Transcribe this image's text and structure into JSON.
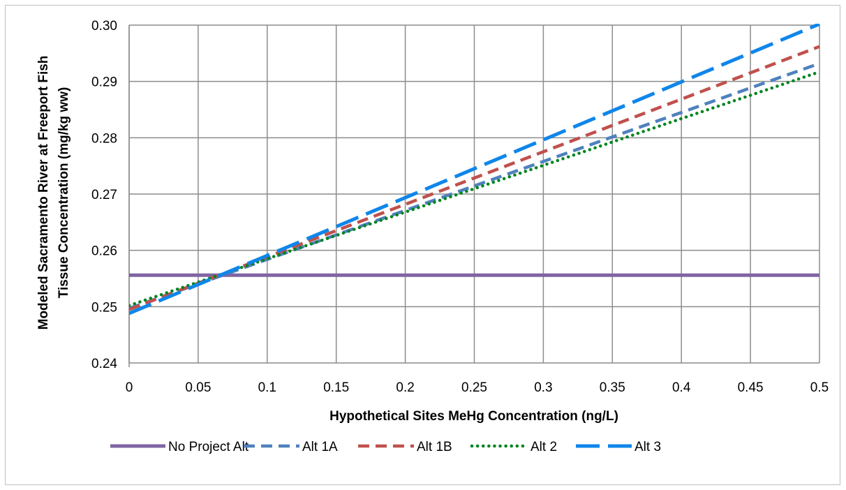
{
  "chart_data": {
    "type": "line",
    "title": "",
    "xlabel": "Hypothetical Sites MeHg Concentration (ng/L)",
    "ylabel": [
      "Modeled Sacramento River at Freeport Fish",
      "Tissue Concentration (mg/kg ww)"
    ],
    "xlim": [
      0,
      0.5
    ],
    "ylim": [
      0.24,
      0.3
    ],
    "x_ticks": [
      0,
      0.05,
      0.1,
      0.15,
      0.2,
      0.25,
      0.3,
      0.35,
      0.4,
      0.45,
      0.5
    ],
    "x_tick_labels": [
      "0",
      "0.05",
      "0.1",
      "0.15",
      "0.2",
      "0.25",
      "0.3",
      "0.35",
      "0.4",
      "0.45",
      "0.5"
    ],
    "y_ticks": [
      0.24,
      0.25,
      0.26,
      0.27,
      0.28,
      0.29,
      0.3
    ],
    "y_tick_labels": [
      "0.24",
      "0.25",
      "0.26",
      "0.27",
      "0.28",
      "0.29",
      "0.30"
    ],
    "grid": true,
    "legend_position": "bottom",
    "series": [
      {
        "name": "No Project Alt",
        "x": [
          0,
          0.5
        ],
        "y": [
          0.2556,
          0.2556
        ],
        "color": "#8064a2",
        "style": "solid"
      },
      {
        "name": "Alt 1A",
        "x": [
          0,
          0.5
        ],
        "y": [
          0.2497,
          0.2932
        ],
        "color": "#4f81bd",
        "style": "dash"
      },
      {
        "name": "Alt 1B",
        "x": [
          0,
          0.5
        ],
        "y": [
          0.2495,
          0.2962
        ],
        "color": "#c0504d",
        "style": "dash"
      },
      {
        "name": "Alt 2",
        "x": [
          0,
          0.5
        ],
        "y": [
          0.2502,
          0.2917
        ],
        "color": "#00851f",
        "style": "dot"
      },
      {
        "name": "Alt 3",
        "x": [
          0,
          0.5
        ],
        "y": [
          0.2488,
          0.3002
        ],
        "color": "#0f86ea",
        "style": "longdash"
      }
    ]
  }
}
